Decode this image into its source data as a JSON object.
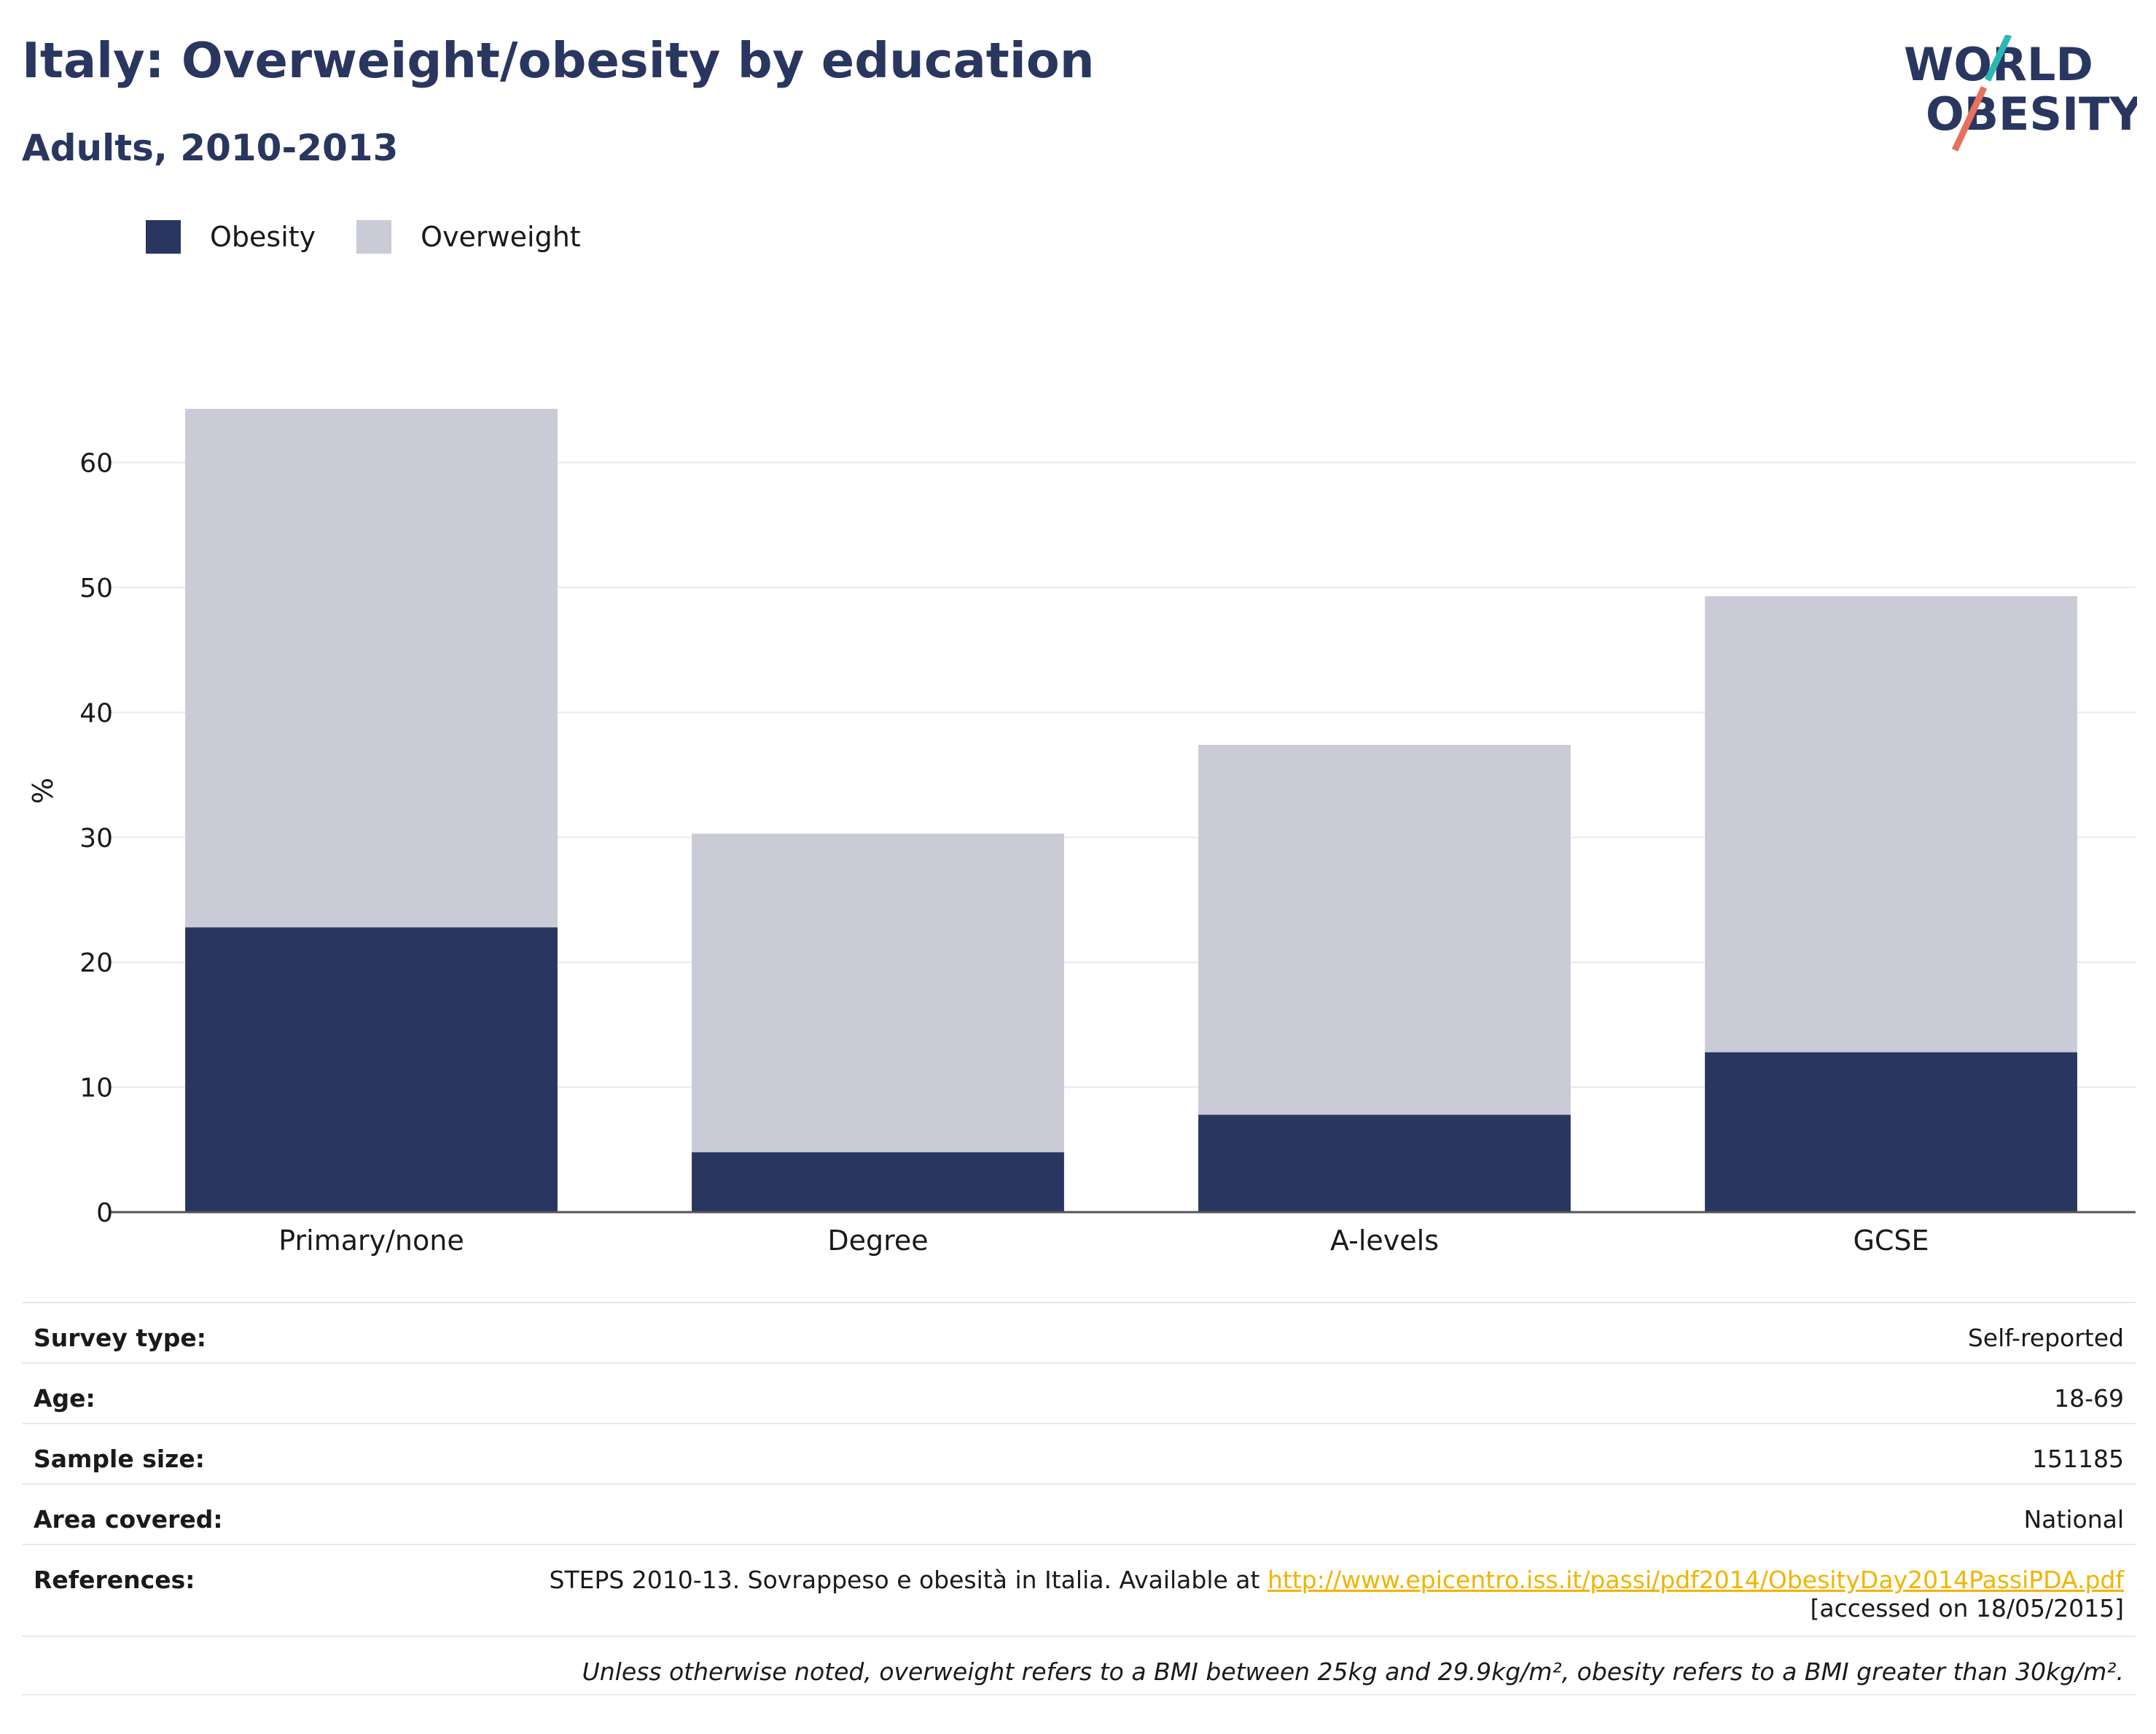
{
  "header": {
    "title": "Italy: Overweight/obesity by education",
    "subtitle": "Adults, 2010-2013"
  },
  "logo": {
    "line1": "WORLD",
    "line2": "OBESITY"
  },
  "legend": [
    {
      "label": "Obesity",
      "color": "#29365f"
    },
    {
      "label": "Overweight",
      "color": "#cacbd7"
    }
  ],
  "chart_data": {
    "type": "bar",
    "stacked": true,
    "categories": [
      "Primary/none",
      "Degree",
      "A-levels",
      "GCSE"
    ],
    "series": [
      {
        "name": "Obesity",
        "color": "#29365f",
        "values": [
          22.8,
          4.8,
          7.8,
          12.8
        ]
      },
      {
        "name": "Overweight",
        "color": "#cacbd7",
        "values": [
          41.5,
          25.5,
          29.6,
          36.5
        ]
      }
    ],
    "ylabel": "%",
    "ylim": [
      0,
      66
    ],
    "yticks": [
      0,
      10,
      20,
      30,
      40,
      50,
      60
    ],
    "grid": true,
    "legend_position": "top-left"
  },
  "info": {
    "survey_type": {
      "label": "Survey type:",
      "value": "Self-reported"
    },
    "age": {
      "label": "Age:",
      "value": "18-69"
    },
    "sample_size": {
      "label": "Sample size:",
      "value": "151185"
    },
    "area_covered": {
      "label": "Area covered:",
      "value": "National"
    },
    "references": {
      "label": "References:",
      "text": "STEPS 2010-13. Sovrappeso e obesità in Italia. Available at ",
      "link": "http://www.epicentro.iss.it/passi/pdf2014/ObesityDay2014PassiPDA.pdf",
      "accessed": "[accessed on 18/05/2015]"
    },
    "note": "Unless otherwise noted, overweight refers to a BMI between 25kg and 29.9kg/m², obesity refers to a BMI greater than 30kg/m²."
  }
}
